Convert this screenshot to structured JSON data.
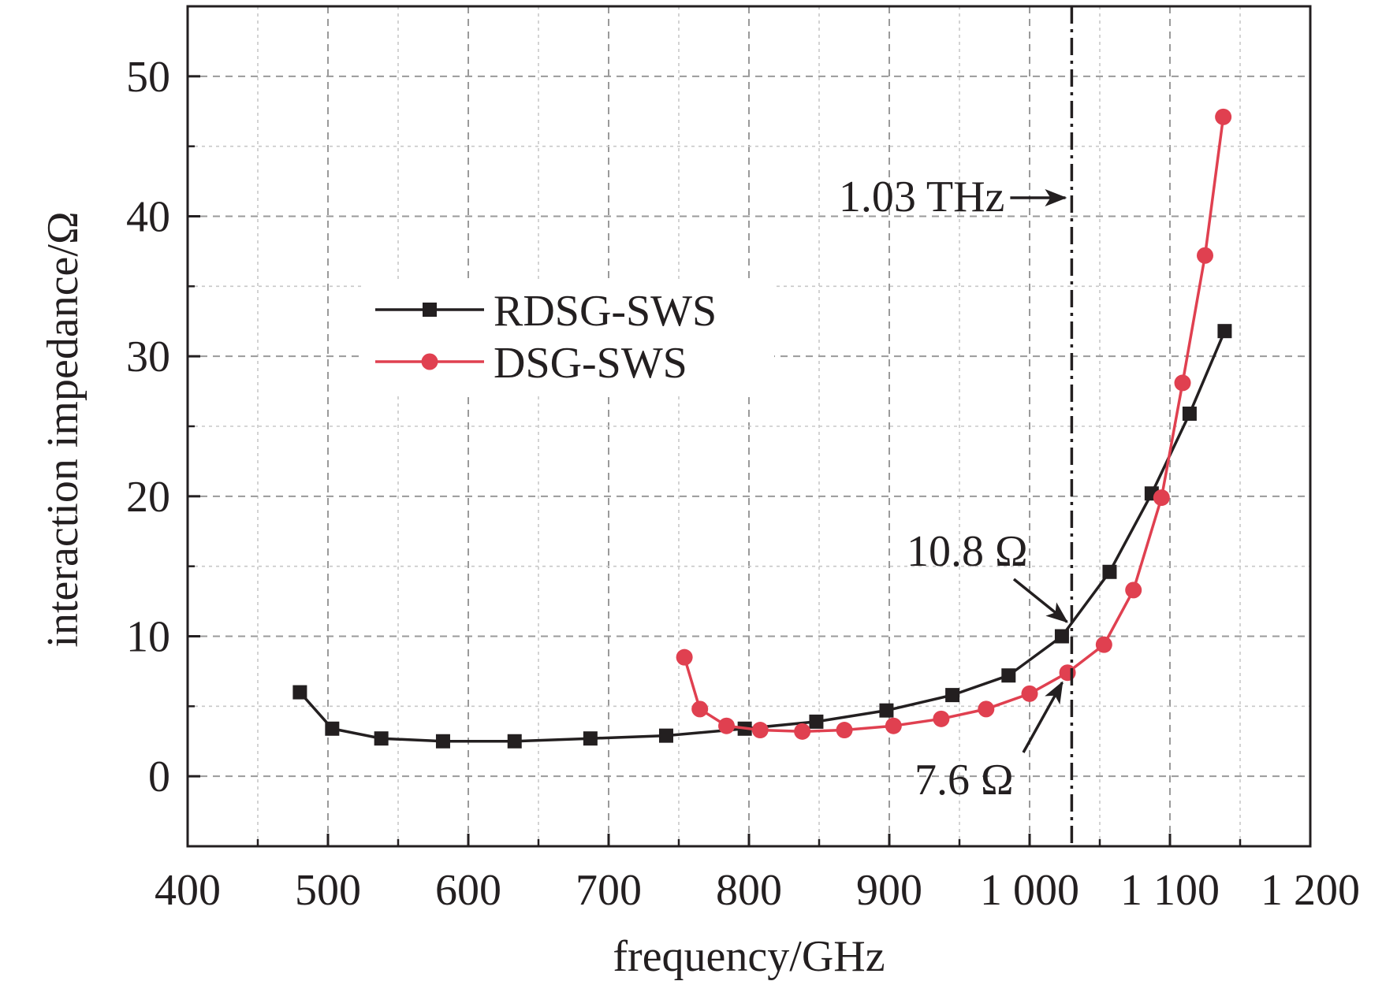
{
  "chart_data": {
    "type": "line",
    "xlabel": "frequency/GHz",
    "ylabel": "interaction impedance/Ω",
    "xlim": [
      400,
      1200
    ],
    "ylim": [
      -5,
      55
    ],
    "x_ticks": [
      400,
      500,
      600,
      700,
      800,
      900,
      1000,
      1100,
      1200
    ],
    "x_tick_labels": [
      "400",
      "500",
      "600",
      "700",
      "800",
      "900",
      "1 000",
      "1 100",
      "1 200"
    ],
    "y_ticks": [
      0,
      10,
      20,
      30,
      40,
      50
    ],
    "y_tick_labels": [
      "0",
      "10",
      "20",
      "30",
      "40",
      "50"
    ],
    "grid": true,
    "legend_position": "upper-left",
    "series": [
      {
        "name": "RDSG-SWS",
        "color": "#231f20",
        "marker": "square",
        "x": [
          480,
          503,
          538,
          582,
          633,
          687,
          741,
          797,
          848,
          898,
          945,
          985,
          1023,
          1057,
          1087,
          1114,
          1139
        ],
        "y": [
          6.0,
          3.4,
          2.7,
          2.5,
          2.5,
          2.7,
          2.9,
          3.4,
          3.9,
          4.7,
          5.8,
          7.2,
          10.0,
          14.6,
          20.2,
          25.9,
          31.8
        ]
      },
      {
        "name": "DSG-SWS",
        "color": "#e04050",
        "marker": "circle",
        "x": [
          754,
          765,
          784,
          808,
          838,
          868,
          903,
          937,
          969,
          1000,
          1027,
          1053,
          1074,
          1094,
          1109,
          1125,
          1138
        ],
        "y": [
          8.5,
          4.8,
          3.6,
          3.3,
          3.2,
          3.3,
          3.6,
          4.1,
          4.8,
          5.9,
          7.4,
          9.4,
          13.3,
          19.9,
          28.1,
          37.2,
          47.1
        ]
      }
    ],
    "vline": {
      "x": 1030,
      "label": "1.03 THz"
    },
    "annotations": [
      {
        "text": "10.8 Ω",
        "x": 1030,
        "y": 10.8
      },
      {
        "text": "7.6 Ω",
        "x": 1030,
        "y": 7.6
      }
    ]
  }
}
